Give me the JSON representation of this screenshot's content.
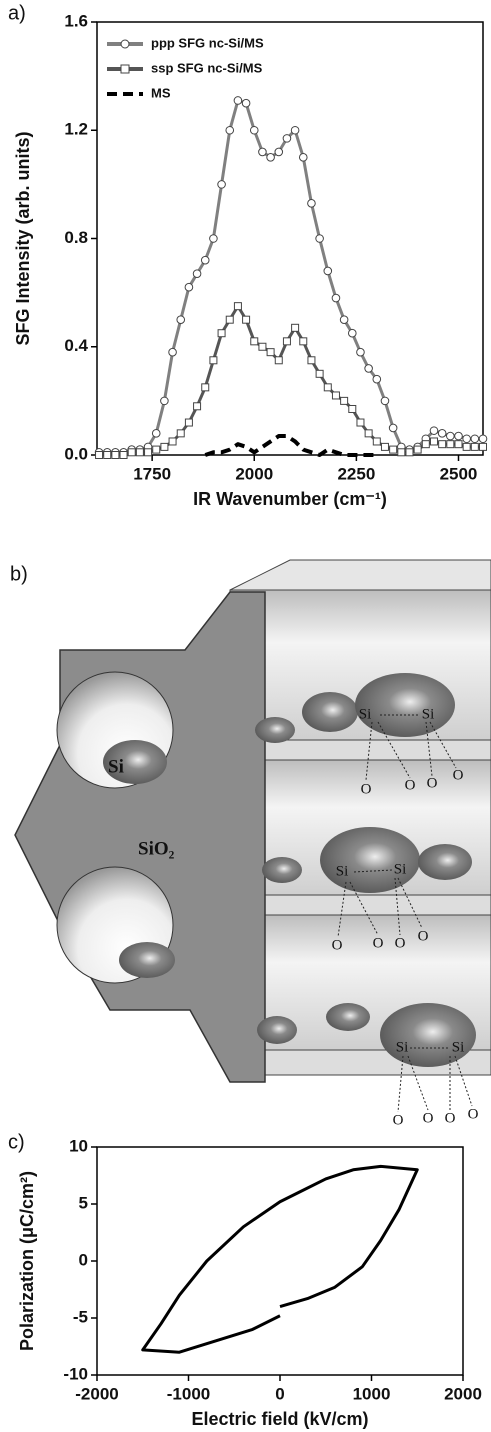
{
  "chart_data": [
    {
      "type": "line",
      "label": "a)",
      "xlabel": "IR Wavenumber (cm⁻¹)",
      "ylabel": "SFG Intensity (arb. units)",
      "xlim": [
        1615,
        2560
      ],
      "xticks": [
        1750,
        2000,
        2250,
        2500
      ],
      "ylim": [
        0,
        1.6
      ],
      "yticks": [
        {
          "value": 0,
          "label": "0.0"
        },
        0.4,
        0.8,
        1.2,
        1.6
      ],
      "legend": "upper left",
      "x": [
        1620,
        1640,
        1660,
        1680,
        1700,
        1720,
        1740,
        1760,
        1780,
        1800,
        1820,
        1840,
        1860,
        1880,
        1900,
        1920,
        1940,
        1960,
        1980,
        2000,
        2020,
        2040,
        2060,
        2080,
        2100,
        2120,
        2140,
        2160,
        2180,
        2200,
        2220,
        2240,
        2260,
        2280,
        2300,
        2320,
        2340,
        2360,
        2380,
        2400,
        2420,
        2440,
        2460,
        2480,
        2500,
        2520,
        2540,
        2560
      ],
      "series": [
        {
          "name": "ppp SFG nc-Si/MS",
          "color": "#808080",
          "marker": "circle",
          "values": [
            0.01,
            0.01,
            0.01,
            0.01,
            0.02,
            0.02,
            0.03,
            0.08,
            0.2,
            0.38,
            0.5,
            0.62,
            0.67,
            0.72,
            0.8,
            1.0,
            1.2,
            1.31,
            1.3,
            1.2,
            1.12,
            1.1,
            1.12,
            1.17,
            1.2,
            1.1,
            0.93,
            0.8,
            0.68,
            0.58,
            0.5,
            0.45,
            0.38,
            0.32,
            0.28,
            0.2,
            0.1,
            0.03,
            0.02,
            0.03,
            0.06,
            0.09,
            0.08,
            0.07,
            0.07,
            0.06,
            0.06,
            0.06
          ]
        },
        {
          "name": "ssp SFG nc-Si/MS",
          "color": "#555555",
          "marker": "square",
          "values": [
            0,
            0,
            0,
            0,
            0.01,
            0.01,
            0.01,
            0.02,
            0.03,
            0.05,
            0.08,
            0.12,
            0.18,
            0.25,
            0.35,
            0.45,
            0.5,
            0.55,
            0.5,
            0.42,
            0.4,
            0.38,
            0.35,
            0.42,
            0.47,
            0.42,
            0.35,
            0.3,
            0.25,
            0.22,
            0.2,
            0.17,
            0.12,
            0.08,
            0.05,
            0.03,
            0.02,
            0.01,
            0.01,
            0.02,
            0.04,
            0.05,
            0.04,
            0.04,
            0.04,
            0.03,
            0.03,
            0.03
          ]
        },
        {
          "name": "MS",
          "color": "#000000",
          "dash": true,
          "values": [
            null,
            null,
            null,
            null,
            null,
            null,
            null,
            null,
            null,
            null,
            null,
            null,
            null,
            0,
            0.01,
            0.01,
            0.02,
            0.04,
            0.03,
            0.01,
            0.03,
            0.05,
            0.07,
            0.07,
            0.05,
            0.02,
            0.01,
            0,
            0.02,
            0.01,
            0,
            0,
            0,
            0,
            0,
            null,
            null,
            null,
            null,
            null,
            null,
            null,
            null,
            null,
            null,
            null,
            null,
            null
          ]
        }
      ]
    },
    {
      "type": "line",
      "label": "c)",
      "xlabel": "Electric field (kV/cm)",
      "ylabel": "Polarization (μC/cm²)",
      "xlim": [
        -2000,
        2000
      ],
      "xticks": [
        -2000,
        -1000,
        0,
        1000,
        2000
      ],
      "ylim": [
        -10,
        10
      ],
      "yticks": [
        -10,
        -5,
        0,
        5,
        10
      ],
      "color": "#000000",
      "x": [
        0,
        300,
        600,
        900,
        1100,
        1300,
        1500,
        1100,
        800,
        500,
        200,
        0,
        -400,
        -800,
        -1100,
        -1300,
        -1500,
        -1100,
        -700,
        -300,
        0
      ],
      "values": [
        -4,
        -3.3,
        -2.3,
        -0.5,
        1.8,
        4.5,
        8,
        8.3,
        8,
        7.2,
        6,
        5.2,
        3,
        0,
        -3,
        -5.5,
        -7.8,
        -8,
        -7,
        -6,
        -4.8
      ]
    }
  ],
  "diagram": {
    "label": "b)",
    "labels": [
      "Si",
      "SiO₂",
      "Si",
      "Si",
      "O",
      "O",
      "O",
      "O",
      "Si",
      "Si",
      "O",
      "O",
      "O",
      "O",
      "Si",
      "Si",
      "O",
      "O",
      "O",
      "O"
    ]
  }
}
